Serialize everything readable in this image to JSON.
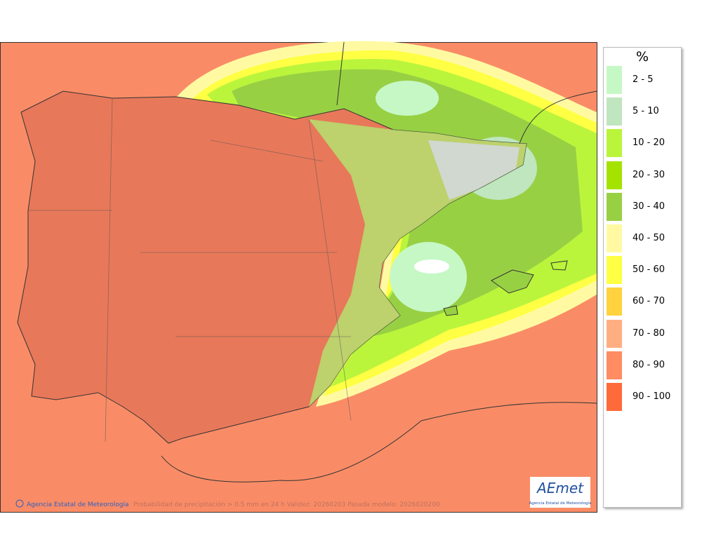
{
  "legend": {
    "title": "%",
    "items": [
      {
        "label": "2 - 5",
        "color": "#c6f8c6"
      },
      {
        "label": "5 - 10",
        "color": "#bfe6bf"
      },
      {
        "label": "10 - 20",
        "color": "#baf53c"
      },
      {
        "label": "20 - 30",
        "color": "#a4e300"
      },
      {
        "label": "30 - 40",
        "color": "#98d044"
      },
      {
        "label": "40 - 50",
        "color": "#fffaa2"
      },
      {
        "label": "50 - 60",
        "color": "#ffff44"
      },
      {
        "label": "60 - 70",
        "color": "#ffd23e"
      },
      {
        "label": "70 - 80",
        "color": "#ffae82"
      },
      {
        "label": "80 - 90",
        "color": "#ff8c62"
      },
      {
        "label": "90 - 100",
        "color": "#ff6a3a"
      }
    ]
  },
  "footer": {
    "credit": "Agencia Estatal de Meteorología",
    "caption": "Probabilidad de precipitación > 0.5 mm en 24 h Validez: 20260203 Pasada modelo: 2026020200"
  },
  "logo": {
    "name": "AEmet",
    "subtitle": "Agencia Estatal de Meteorología"
  }
}
